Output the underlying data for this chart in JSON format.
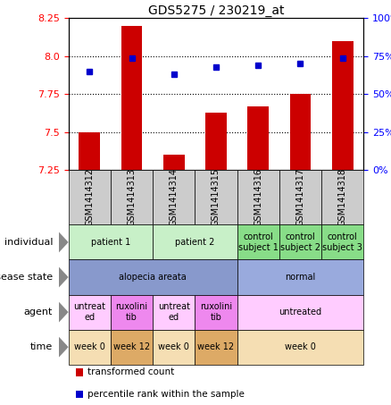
{
  "title": "GDS5275 / 230219_at",
  "samples": [
    "GSM1414312",
    "GSM1414313",
    "GSM1414314",
    "GSM1414315",
    "GSM1414316",
    "GSM1414317",
    "GSM1414318"
  ],
  "transformed_count": [
    7.5,
    8.2,
    7.35,
    7.63,
    7.67,
    7.75,
    8.1
  ],
  "percentile_rank": [
    65,
    74,
    63,
    68,
    69,
    70,
    74
  ],
  "ylim_left": [
    7.25,
    8.25
  ],
  "ylim_right": [
    0,
    100
  ],
  "yticks_left": [
    7.25,
    7.5,
    7.75,
    8.0,
    8.25
  ],
  "yticks_right": [
    0,
    25,
    50,
    75,
    100
  ],
  "bar_color": "#cc0000",
  "dot_color": "#0000cc",
  "annotation_rows": [
    {
      "label": "individual",
      "cells": [
        {
          "text": "patient 1",
          "colspan": 2,
          "color": "#c8f0c8"
        },
        {
          "text": "patient 2",
          "colspan": 2,
          "color": "#c8f0c8"
        },
        {
          "text": "control\nsubject 1",
          "colspan": 1,
          "color": "#88dd88"
        },
        {
          "text": "control\nsubject 2",
          "colspan": 1,
          "color": "#88dd88"
        },
        {
          "text": "control\nsubject 3",
          "colspan": 1,
          "color": "#88dd88"
        }
      ]
    },
    {
      "label": "disease state",
      "cells": [
        {
          "text": "alopecia areata",
          "colspan": 4,
          "color": "#8899cc"
        },
        {
          "text": "normal",
          "colspan": 3,
          "color": "#99aadd"
        }
      ]
    },
    {
      "label": "agent",
      "cells": [
        {
          "text": "untreat\ned",
          "colspan": 1,
          "color": "#ffccff"
        },
        {
          "text": "ruxolini\ntib",
          "colspan": 1,
          "color": "#ee88ee"
        },
        {
          "text": "untreat\ned",
          "colspan": 1,
          "color": "#ffccff"
        },
        {
          "text": "ruxolini\ntib",
          "colspan": 1,
          "color": "#ee88ee"
        },
        {
          "text": "untreated",
          "colspan": 3,
          "color": "#ffccff"
        }
      ]
    },
    {
      "label": "time",
      "cells": [
        {
          "text": "week 0",
          "colspan": 1,
          "color": "#f5deb3"
        },
        {
          "text": "week 12",
          "colspan": 1,
          "color": "#ddaa66"
        },
        {
          "text": "week 0",
          "colspan": 1,
          "color": "#f5deb3"
        },
        {
          "text": "week 12",
          "colspan": 1,
          "color": "#ddaa66"
        },
        {
          "text": "week 0",
          "colspan": 3,
          "color": "#f5deb3"
        }
      ]
    }
  ],
  "figsize": [
    4.38,
    4.53
  ],
  "dpi": 100
}
